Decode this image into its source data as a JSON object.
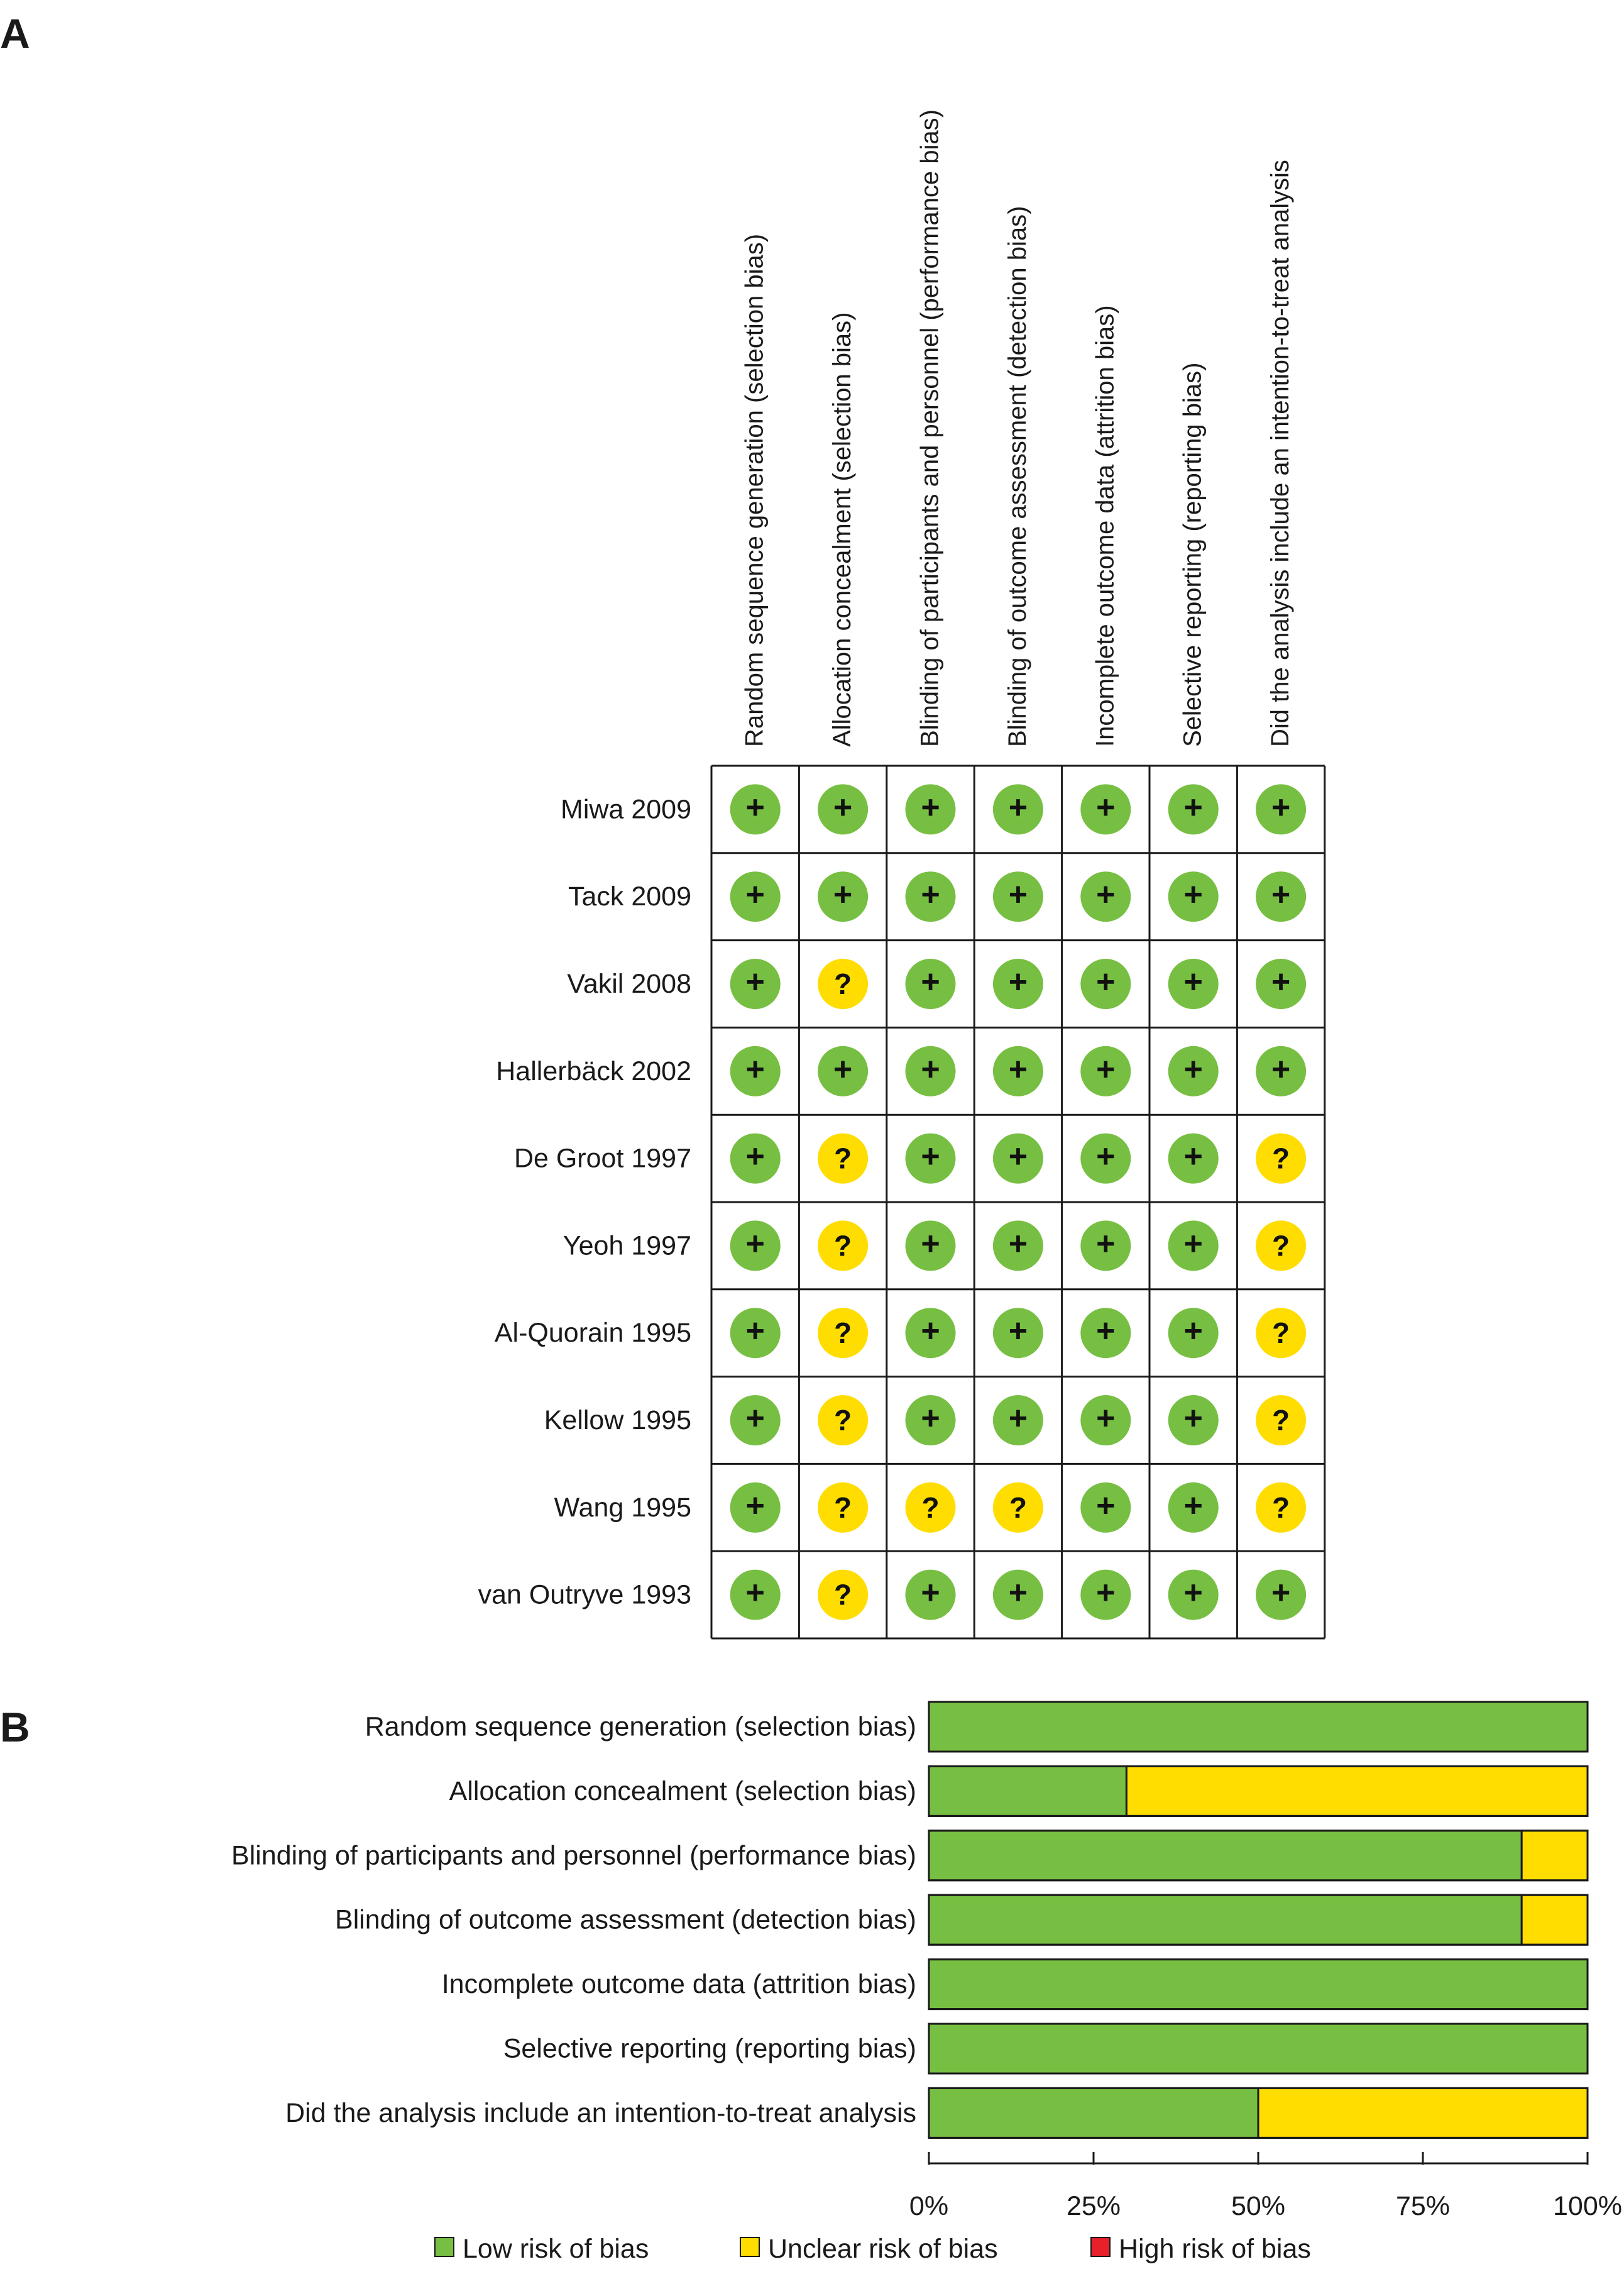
{
  "panels": {
    "a_label": "A",
    "b_label": "B"
  },
  "chart_data": [
    {
      "type": "table",
      "name": "risk-of-bias-summary",
      "columns": [
        "Random sequence generation (selection bias)",
        "Allocation concealment (selection bias)",
        "Blinding of participants and personnel (performance bias)",
        "Blinding of outcome assessment (detection bias)",
        "Incomplete outcome data (attrition bias)",
        "Selective reporting (reporting bias)",
        "Did the analysis include an intention-to-treat analysis"
      ],
      "rows": [
        {
          "study": "Miwa 2009",
          "ratings": [
            "+",
            "+",
            "+",
            "+",
            "+",
            "+",
            "+"
          ]
        },
        {
          "study": "Tack 2009",
          "ratings": [
            "+",
            "+",
            "+",
            "+",
            "+",
            "+",
            "+"
          ]
        },
        {
          "study": "Vakil 2008",
          "ratings": [
            "+",
            "?",
            "+",
            "+",
            "+",
            "+",
            "+"
          ]
        },
        {
          "study": "Hallerbäck 2002",
          "ratings": [
            "+",
            "+",
            "+",
            "+",
            "+",
            "+",
            "+"
          ]
        },
        {
          "study": "De Groot 1997",
          "ratings": [
            "+",
            "?",
            "+",
            "+",
            "+",
            "+",
            "?"
          ]
        },
        {
          "study": "Yeoh 1997",
          "ratings": [
            "+",
            "?",
            "+",
            "+",
            "+",
            "+",
            "?"
          ]
        },
        {
          "study": "Al-Quorain 1995",
          "ratings": [
            "+",
            "?",
            "+",
            "+",
            "+",
            "+",
            "?"
          ]
        },
        {
          "study": "Kellow 1995",
          "ratings": [
            "+",
            "?",
            "+",
            "+",
            "+",
            "+",
            "?"
          ]
        },
        {
          "study": "Wang 1995",
          "ratings": [
            "+",
            "?",
            "?",
            "?",
            "+",
            "+",
            "?"
          ]
        },
        {
          "study": "van Outryve 1993",
          "ratings": [
            "+",
            "?",
            "+",
            "+",
            "+",
            "+",
            "+"
          ]
        }
      ],
      "rating_colors": {
        "+": "#77bf42",
        "?": "#ffdd00",
        "-": "#e8202a"
      }
    },
    {
      "type": "bar",
      "orientation": "horizontal",
      "stacked": true,
      "name": "risk-of-bias-graph",
      "categories": [
        "Random sequence generation (selection bias)",
        "Allocation concealment (selection bias)",
        "Blinding of participants and personnel (performance bias)",
        "Blinding of outcome assessment (detection bias)",
        "Incomplete outcome data (attrition bias)",
        "Selective reporting (reporting bias)",
        "Did the analysis include an intention-to-treat analysis"
      ],
      "series": [
        {
          "name": "Low risk of bias",
          "color": "#77bf42",
          "values": [
            100,
            30,
            90,
            90,
            100,
            100,
            50
          ]
        },
        {
          "name": "Unclear risk of bias",
          "color": "#ffdd00",
          "values": [
            0,
            70,
            10,
            10,
            0,
            0,
            50
          ]
        },
        {
          "name": "High risk of bias",
          "color": "#e8202a",
          "values": [
            0,
            0,
            0,
            0,
            0,
            0,
            0
          ]
        }
      ],
      "xlim": [
        0,
        100
      ],
      "xticks": [
        "0%",
        "25%",
        "50%",
        "75%",
        "100%"
      ],
      "legend_position": "bottom"
    }
  ]
}
